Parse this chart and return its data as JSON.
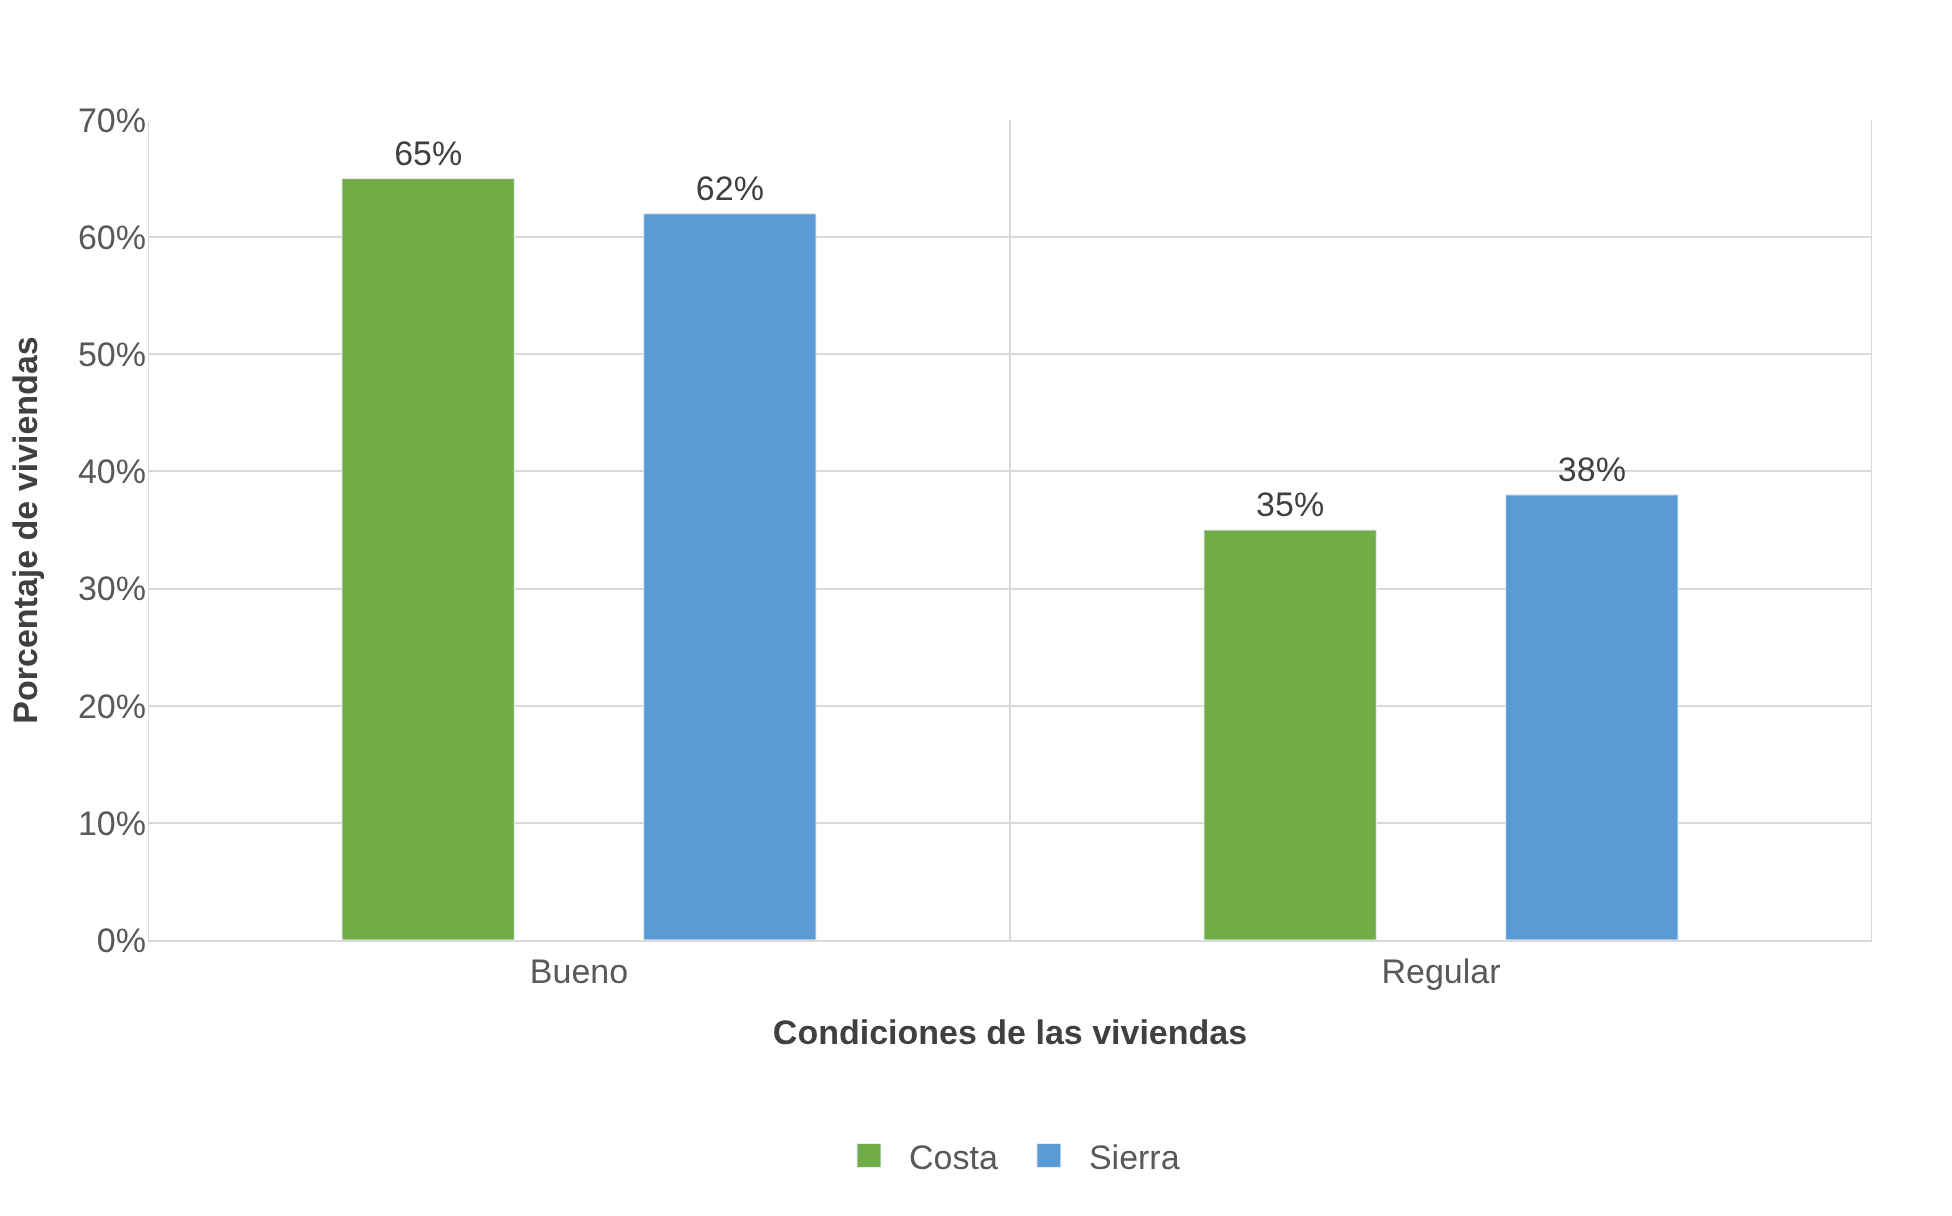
{
  "chart_data": {
    "type": "bar",
    "xlabel": "Condiciones de las viviendas",
    "ylabel": "Porcentaje de viviendas",
    "categories": [
      "Bueno",
      "Regular"
    ],
    "series": [
      {
        "name": "Costa",
        "color": "#70ad47",
        "values": [
          65,
          35
        ],
        "value_labels": [
          "65%",
          "35%"
        ]
      },
      {
        "name": "Sierra",
        "color": "#5b9bd5",
        "values": [
          62,
          38
        ],
        "value_labels": [
          "62%",
          "38%"
        ]
      }
    ],
    "ylim": [
      0,
      70
    ],
    "yticks": [
      {
        "value": 0,
        "label": "0%"
      },
      {
        "value": 10,
        "label": "10%"
      },
      {
        "value": 20,
        "label": "20%"
      },
      {
        "value": 30,
        "label": "30%"
      },
      {
        "value": 40,
        "label": "40%"
      },
      {
        "value": 50,
        "label": "50%"
      },
      {
        "value": 60,
        "label": "60%"
      },
      {
        "value": 70,
        "label": "70%"
      }
    ],
    "grid": true,
    "legend": "bottom"
  }
}
